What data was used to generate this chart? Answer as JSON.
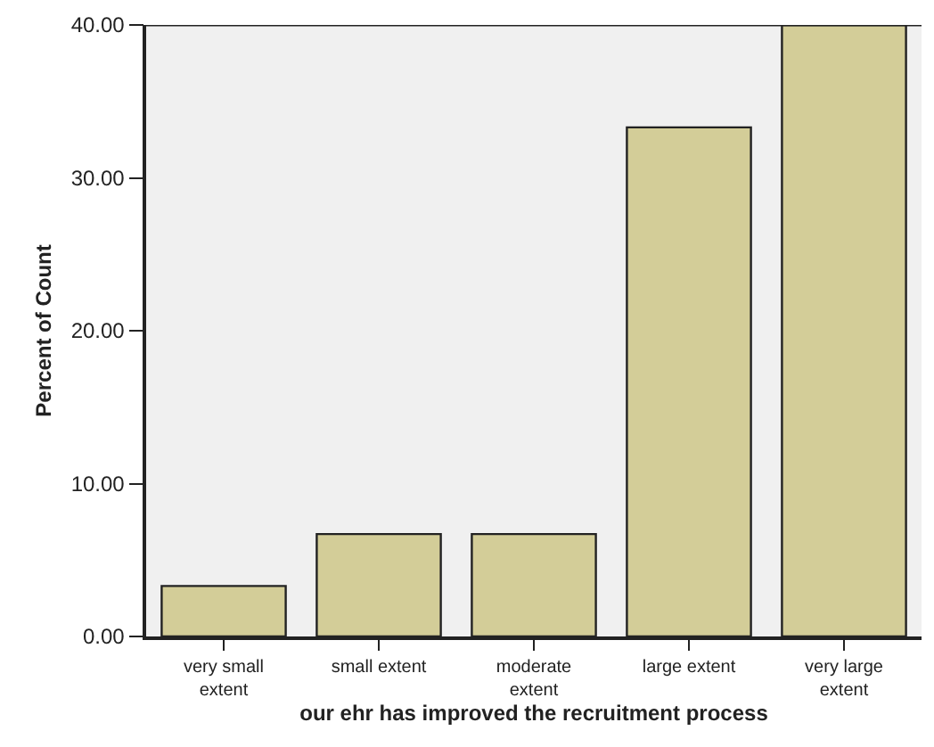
{
  "chart_data": {
    "type": "bar",
    "xlabel": "our ehr has improved the recruitment process",
    "ylabel": "Percent of Count",
    "categories": [
      "very small extent",
      "small extent",
      "moderate extent",
      "large extent",
      "very large extent"
    ],
    "values": [
      3.3,
      6.7,
      6.7,
      33.3,
      40.0
    ],
    "color": "#d3cd98",
    "ylim": [
      0,
      40
    ],
    "yticks": [
      {
        "value": 0,
        "label": "0.00"
      },
      {
        "value": 10,
        "label": "10.00"
      },
      {
        "value": 20,
        "label": "20.00"
      },
      {
        "value": 30,
        "label": "30.00"
      },
      {
        "value": 40,
        "label": "40.00"
      }
    ],
    "grid": false
  }
}
